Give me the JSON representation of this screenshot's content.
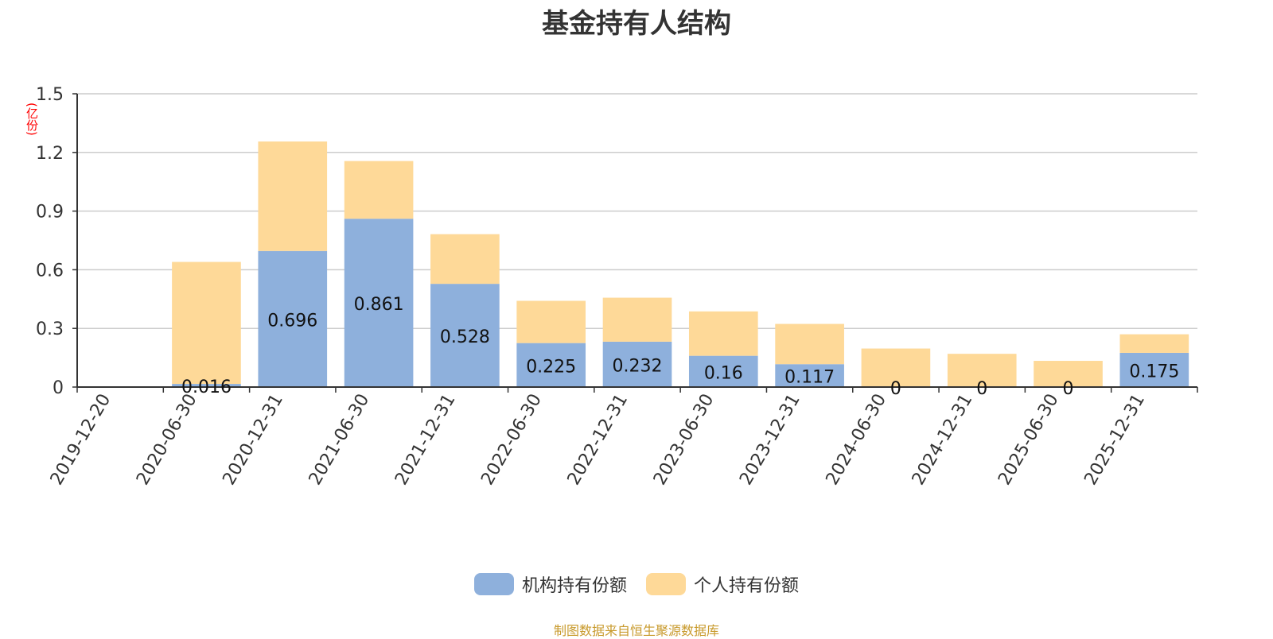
{
  "chart_data": {
    "type": "bar",
    "stacked": true,
    "title": "基金持有人结构",
    "ylabel": "(亿份)",
    "ylim": [
      0,
      1.5
    ],
    "yticks": [
      "0",
      "0.3",
      "0.6",
      "0.9",
      "1.2",
      "1.5"
    ],
    "grid": true,
    "legend_position": "bottom",
    "categories": [
      "2019-12-20",
      "2020-06-30",
      "2020-12-31",
      "2021-06-30",
      "2021-12-31",
      "2022-06-30",
      "2022-12-31",
      "2023-06-30",
      "2023-12-31",
      "2024-06-30",
      "2024-12-31",
      "2025-06-30",
      "2025-12-31"
    ],
    "series": [
      {
        "name": "机构持有份额",
        "color": "#8eb0dc",
        "values": [
          0,
          0.016,
          0.696,
          0.861,
          0.528,
          0.225,
          0.232,
          0.16,
          0.117,
          0,
          0,
          0,
          0.175
        ],
        "labels": [
          "",
          "0.016",
          "0.696",
          "0.861",
          "0.528",
          "0.225",
          "0.232",
          "0.16",
          "0.117",
          "0",
          "0",
          "0",
          "0.175"
        ]
      },
      {
        "name": "个人持有份额",
        "color": "#fed998",
        "values": [
          0,
          0.624,
          0.56,
          0.295,
          0.254,
          0.216,
          0.225,
          0.227,
          0.206,
          0.197,
          0.17,
          0.134,
          0.095
        ]
      }
    ]
  },
  "footer": {
    "source": "制图数据来自恒生聚源数据库"
  }
}
